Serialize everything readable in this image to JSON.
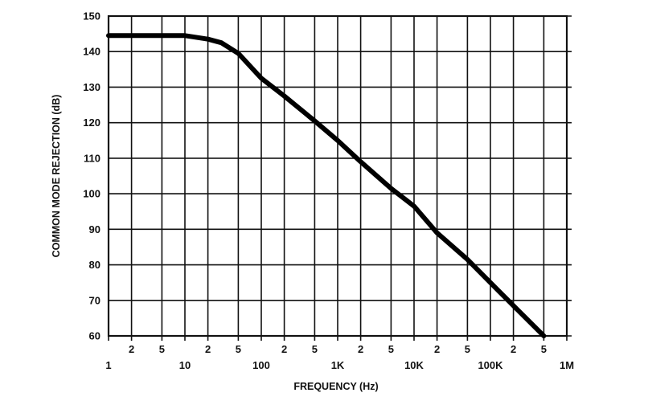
{
  "chart_data": {
    "type": "line",
    "title": "",
    "xlabel": "FREQUENCY (Hz)",
    "ylabel": "COMMON MODE REJECTION (dB)",
    "xscale": "log",
    "xlim": [
      1,
      1000000
    ],
    "ylim": [
      60,
      150
    ],
    "grid": true,
    "yticks": [
      {
        "value": 60,
        "label": "60"
      },
      {
        "value": 70,
        "label": "70"
      },
      {
        "value": 80,
        "label": "80"
      },
      {
        "value": 90,
        "label": "90"
      },
      {
        "value": 100,
        "label": "100"
      },
      {
        "value": 110,
        "label": "110"
      },
      {
        "value": 120,
        "label": "120"
      },
      {
        "value": 130,
        "label": "130"
      },
      {
        "value": 140,
        "label": "140"
      },
      {
        "value": 150,
        "label": "150"
      }
    ],
    "xticks_major": [
      {
        "value": 1,
        "label": "1"
      },
      {
        "value": 10,
        "label": "10"
      },
      {
        "value": 100,
        "label": "100"
      },
      {
        "value": 1000,
        "label": "1K"
      },
      {
        "value": 10000,
        "label": "10K"
      },
      {
        "value": 100000,
        "label": "100K"
      },
      {
        "value": 1000000,
        "label": "1M"
      }
    ],
    "xticks_minor": [
      {
        "value": 2,
        "label": "2"
      },
      {
        "value": 5,
        "label": "5"
      },
      {
        "value": 20,
        "label": "2"
      },
      {
        "value": 50,
        "label": "5"
      },
      {
        "value": 200,
        "label": "2"
      },
      {
        "value": 500,
        "label": "5"
      },
      {
        "value": 2000,
        "label": "2"
      },
      {
        "value": 5000,
        "label": "5"
      },
      {
        "value": 20000,
        "label": "2"
      },
      {
        "value": 50000,
        "label": "5"
      },
      {
        "value": 200000,
        "label": "2"
      },
      {
        "value": 500000,
        "label": "5"
      }
    ],
    "series": [
      {
        "x": [
          1,
          2,
          5,
          10,
          20,
          30,
          50,
          100,
          200,
          500,
          1000,
          2000,
          5000,
          10000,
          20000,
          50000,
          100000,
          200000,
          500000
        ],
        "y": [
          144.5,
          144.5,
          144.5,
          144.5,
          143.5,
          142.5,
          139.5,
          132.5,
          127.5,
          120.5,
          115,
          109,
          101.5,
          96.5,
          89,
          81.5,
          75,
          68.5,
          60
        ]
      }
    ]
  }
}
